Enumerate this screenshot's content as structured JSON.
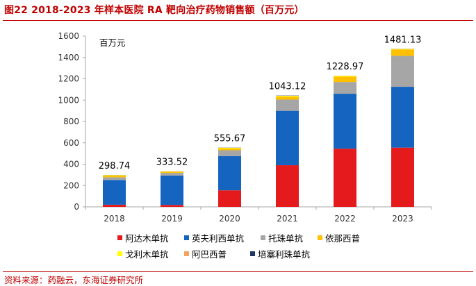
{
  "title": "图22  2018-2023 年样本医院 RA 靶向治疗药物销售额（百万元）",
  "source": "资料来源：药融云，东海证券研究所",
  "chart_data": {
    "type": "bar",
    "stacked": true,
    "unit": "百万元",
    "categories": [
      "2018",
      "2019",
      "2020",
      "2021",
      "2022",
      "2023"
    ],
    "totals": [
      298.74,
      333.52,
      555.67,
      1043.12,
      1228.97,
      1481.13
    ],
    "ylim": [
      0,
      1600
    ],
    "yticks": [
      0,
      200,
      400,
      600,
      800,
      1000,
      1200,
      1400,
      1600
    ],
    "grid": false,
    "legend_position": "bottom",
    "series": [
      {
        "name": "阿达木单抗",
        "color": "#e41a1c",
        "values": [
          20,
          18,
          155,
          390,
          545,
          555
        ]
      },
      {
        "name": "英夫利西单抗",
        "color": "#1565c0",
        "values": [
          232,
          275,
          320,
          510,
          515,
          570
        ]
      },
      {
        "name": "托珠单抗",
        "color": "#a6a6a6",
        "values": [
          25,
          25,
          55,
          105,
          110,
          290
        ]
      },
      {
        "name": "依那西普",
        "color": "#ffc000",
        "values": [
          15,
          12,
          18,
          28,
          50,
          60
        ]
      },
      {
        "name": "戈利木单抗",
        "color": "#ffff00",
        "values": [
          4,
          2,
          5,
          7,
          7,
          4
        ]
      },
      {
        "name": "阿巴西普",
        "color": "#f4a460",
        "values": [
          2,
          1,
          1.67,
          1.12,
          1.97,
          1.13
        ]
      },
      {
        "name": "培塞利珠单抗",
        "color": "#1f3864",
        "values": [
          0.74,
          0.52,
          1,
          2,
          0,
          1
        ]
      }
    ]
  }
}
